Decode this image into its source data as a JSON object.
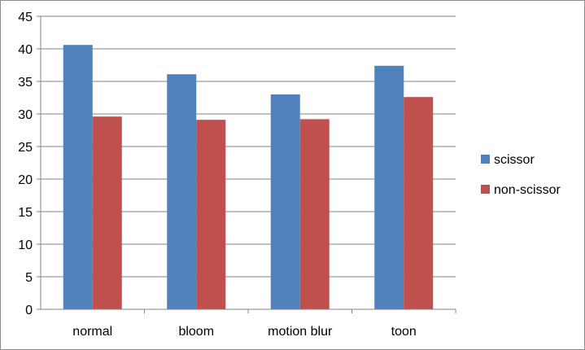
{
  "chart_data": {
    "type": "bar",
    "title": "",
    "xlabel": "",
    "ylabel": "",
    "categories": [
      "normal",
      "bloom",
      "motion blur",
      "toon"
    ],
    "series": [
      {
        "name": "scissor",
        "values": [
          40.6,
          36.1,
          33.0,
          37.4
        ],
        "color": "#4f81bd"
      },
      {
        "name": "non-scissor",
        "values": [
          29.6,
          29.1,
          29.2,
          32.6
        ],
        "color": "#c0504d"
      }
    ],
    "ylim": [
      0,
      45
    ],
    "yticks": [
      0,
      5,
      10,
      15,
      20,
      25,
      30,
      35,
      40,
      45
    ],
    "grid": true,
    "legend_position": "right"
  }
}
